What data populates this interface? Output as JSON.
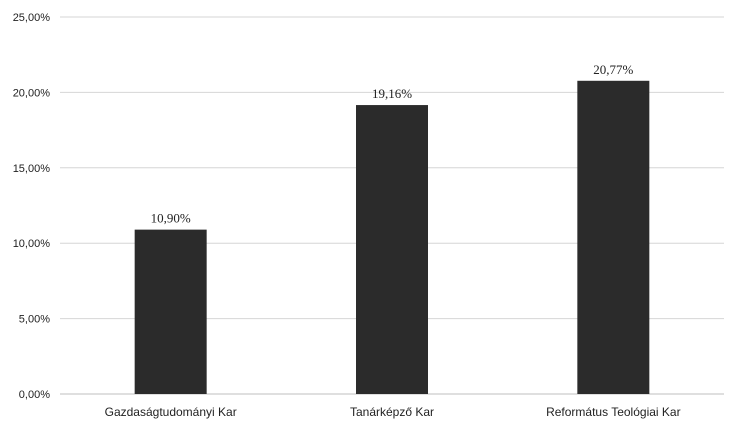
{
  "chart_data": {
    "type": "bar",
    "title": "",
    "xlabel": "",
    "ylabel": "",
    "categories": [
      "Gazdaságtudományi Kar",
      "Tanárképző Kar",
      "Református Teológiai Kar"
    ],
    "values": [
      10.9,
      19.16,
      20.77
    ],
    "data_labels": [
      "10,90%",
      "19,16%",
      "20,77%"
    ],
    "ylim": [
      0,
      25
    ],
    "yticks": [
      0,
      5,
      10,
      15,
      20,
      25
    ],
    "ytick_labels": [
      "0,00%",
      "5,00%",
      "10,00%",
      "15,00%",
      "20,00%",
      "25,00%"
    ],
    "grid": true,
    "legend": "none",
    "colors": {
      "bar": "#2b2b2b",
      "grid": "#d6d6d6",
      "text": "#222222"
    }
  }
}
